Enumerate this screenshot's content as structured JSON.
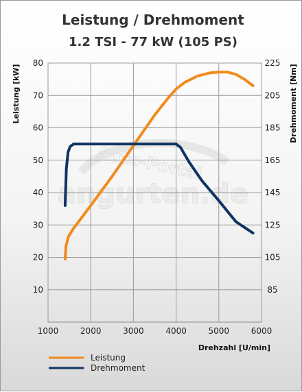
{
  "chart_data": {
    "type": "line",
    "title": "Leistung / Drehmoment",
    "subtitle": "1.2 TSI - 77 kW (105 PS)",
    "xlabel": "Drehzahl [U/min]",
    "ylabel": "Leistung [kW]",
    "y2label": "Drehmoment [Nm]",
    "xlim": [
      1000,
      6000
    ],
    "ylim": [
      0,
      80
    ],
    "y2lim": [
      65,
      225
    ],
    "xticks": [
      "1000",
      "2000",
      "3000",
      "4000",
      "5000",
      "6000"
    ],
    "yticks": [
      "10",
      "20",
      "30",
      "40",
      "50",
      "60",
      "70",
      "80"
    ],
    "y2ticks": [
      "85",
      "105",
      "125",
      "145",
      "165",
      "185",
      "205",
      "225"
    ],
    "grid": true,
    "legend_position": "bottom-left",
    "watermark": "Auto-Portal angurten.de",
    "series": [
      {
        "name": "Leistung",
        "axis": "left",
        "color": "#F28A1E",
        "x": [
          1400,
          1420,
          1480,
          1600,
          1800,
          2000,
          2500,
          3000,
          3500,
          3800,
          4000,
          4200,
          4500,
          4800,
          5000,
          5200,
          5400,
          5600,
          5800
        ],
        "y": [
          19.5,
          23.5,
          26.5,
          29,
          32.5,
          36,
          45,
          54.5,
          64,
          69,
          72,
          74,
          76,
          77,
          77.2,
          77.2,
          76.5,
          75,
          73
        ]
      },
      {
        "name": "Drehmoment",
        "axis": "right",
        "color": "#0E3462",
        "x": [
          1400,
          1430,
          1470,
          1520,
          1600,
          2000,
          3000,
          4000,
          4100,
          4300,
          4600,
          5000,
          5400,
          5800
        ],
        "y": [
          137,
          160,
          170,
          173.5,
          175,
          175,
          175,
          175,
          173,
          164,
          152.5,
          140,
          127,
          120
        ]
      }
    ]
  }
}
